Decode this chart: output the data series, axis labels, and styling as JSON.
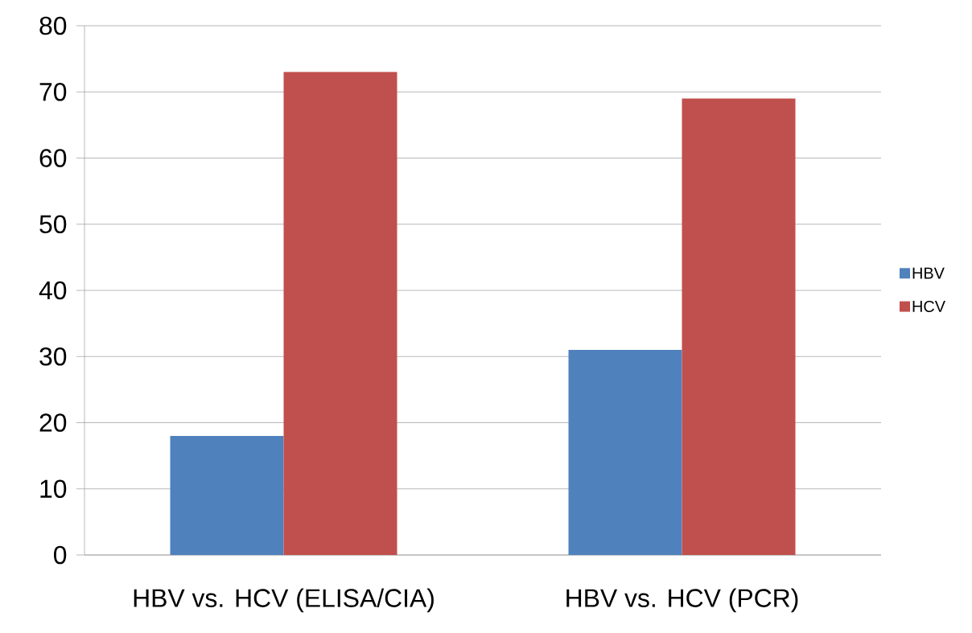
{
  "chart_data": {
    "type": "bar",
    "categories": [
      "HBV vs. HCV (ELISA/CIA)",
      "HBV vs. HCV (PCR)"
    ],
    "series": [
      {
        "name": "HBV",
        "color": "#4f81bd",
        "values": [
          18,
          31
        ]
      },
      {
        "name": "HCV",
        "color": "#c0504d",
        "values": [
          73,
          69
        ]
      }
    ],
    "ylim": [
      0,
      80
    ],
    "yticks": [
      0,
      10,
      20,
      30,
      40,
      50,
      60,
      70,
      80
    ],
    "grid": "y",
    "legend": "right"
  }
}
